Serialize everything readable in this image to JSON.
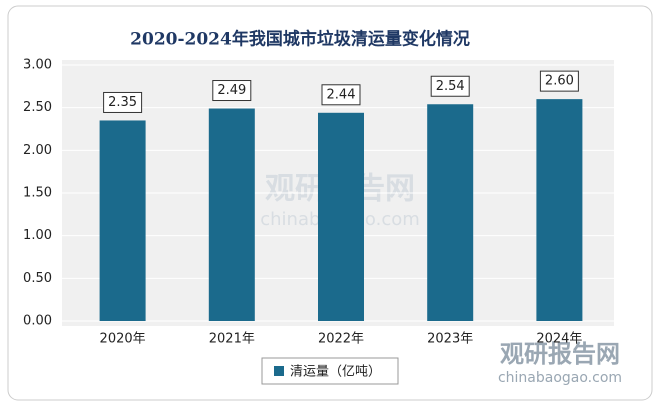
{
  "chart_data": {
    "type": "bar",
    "title": "2020-2024年我国城市垃圾清运量变化情况",
    "categories": [
      "2020年",
      "2021年",
      "2022年",
      "2023年",
      "2024年"
    ],
    "series": [
      {
        "name": "清运量（亿吨）",
        "color": "#1b6a8c",
        "values": [
          2.35,
          2.49,
          2.44,
          2.54,
          2.6
        ],
        "value_labels": [
          "2.35",
          "2.49",
          "2.44",
          "2.54",
          "2.60"
        ]
      }
    ],
    "ylim": [
      0,
      3
    ],
    "yticks": [
      {
        "value": 0,
        "label": "0.00"
      },
      {
        "value": 0.5,
        "label": "0.50"
      },
      {
        "value": 1,
        "label": "1.00"
      },
      {
        "value": 1.5,
        "label": "1.50"
      },
      {
        "value": 2,
        "label": "2.00"
      },
      {
        "value": 2.5,
        "label": "2.50"
      },
      {
        "value": 3,
        "label": "3.00"
      }
    ],
    "grid": true,
    "legend": "bottom",
    "watermark": {
      "name": "观研报告网",
      "url": "chinabaogao.com"
    }
  }
}
